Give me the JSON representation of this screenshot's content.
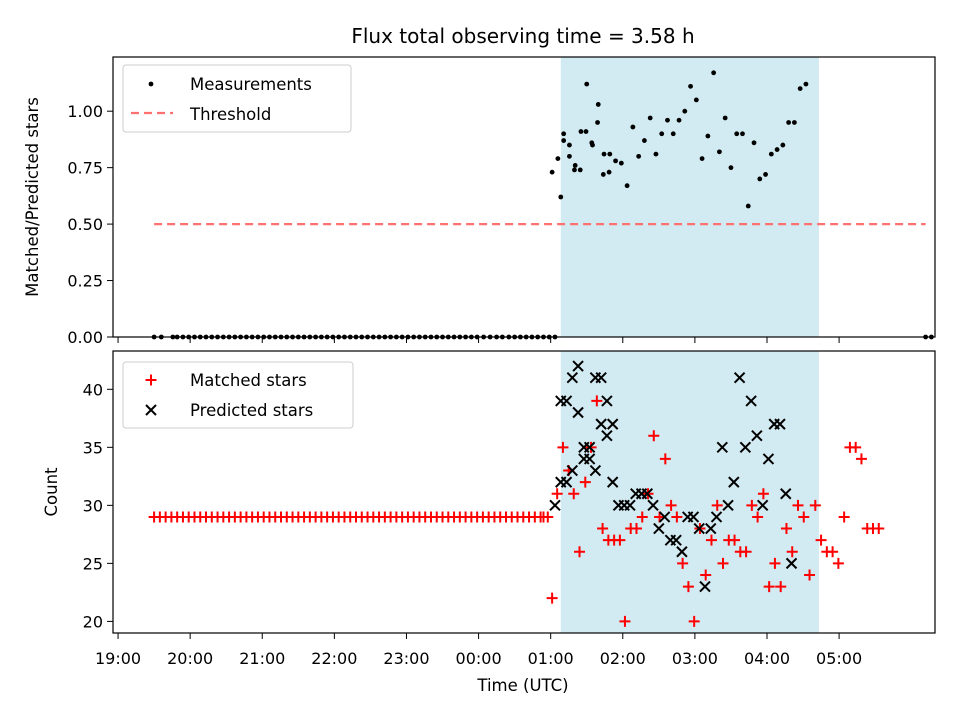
{
  "chart_data": {
    "title": "Flux total observing time = 3.58 h",
    "xlabel": "Time (UTC)",
    "x_ticks": [
      "19:00",
      "20:00",
      "21:00",
      "22:00",
      "23:00",
      "00:00",
      "01:00",
      "02:00",
      "03:00",
      "04:00",
      "05:00"
    ],
    "x_unit": "hours since 18:00 UTC",
    "x_range": [
      0.93,
      12.33
    ],
    "observing_window": [
      7.14,
      10.72
    ],
    "colors": {
      "window": "#add8e6",
      "matched": "#ff0000",
      "predicted": "#000000",
      "threshold": "#ff7070",
      "measurements": "#000000"
    },
    "top": {
      "type": "scatter",
      "ylabel": "Matched/Predicted stars",
      "ylim": [
        0,
        1.24
      ],
      "y_ticks": [
        "0.00",
        "0.25",
        "0.50",
        "0.75",
        "1.00"
      ],
      "legend": {
        "position": "top-left",
        "entries": [
          "Measurements",
          "Threshold"
        ]
      },
      "threshold": {
        "name": "Threshold",
        "value": 0.5,
        "x_range": [
          1.5,
          12.2
        ]
      },
      "measurements": {
        "name": "Measurements",
        "zero_x": [
          1.5,
          1.6,
          1.76,
          1.82,
          1.9,
          1.98,
          2.06,
          2.14,
          2.22,
          2.3,
          2.38,
          2.46,
          2.54,
          2.62,
          2.7,
          2.78,
          2.86,
          2.94,
          3.02,
          3.1,
          3.18,
          3.26,
          3.34,
          3.42,
          3.5,
          3.58,
          3.66,
          3.74,
          3.82,
          3.9,
          3.98,
          4.06,
          4.14,
          4.22,
          4.3,
          4.38,
          4.46,
          4.54,
          4.62,
          4.7,
          4.78,
          4.86,
          4.94,
          5.02,
          5.1,
          5.18,
          5.26,
          5.34,
          5.42,
          5.5,
          5.58,
          5.66,
          5.74,
          5.82,
          5.9,
          5.98,
          6.07,
          6.16,
          6.25,
          6.33,
          6.42,
          6.5,
          6.58,
          6.66,
          6.74,
          6.82,
          6.9,
          6.98,
          7.06,
          12.2,
          12.28
        ],
        "points": [
          [
            7.02,
            0.73
          ],
          [
            7.1,
            0.79
          ],
          [
            7.18,
            0.9
          ],
          [
            7.26,
            0.8
          ],
          [
            7.33,
            0.74
          ],
          [
            7.41,
            0.74
          ],
          [
            7.49,
            0.91
          ],
          [
            7.57,
            0.86
          ],
          [
            7.65,
            0.95
          ],
          [
            7.73,
            0.72
          ],
          [
            7.81,
            0.73
          ],
          [
            7.14,
            0.62
          ],
          [
            7.18,
            0.87
          ],
          [
            7.26,
            0.85
          ],
          [
            7.34,
            0.76
          ],
          [
            7.42,
            0.91
          ],
          [
            7.5,
            1.12
          ],
          [
            7.58,
            0.85
          ],
          [
            7.66,
            1.03
          ],
          [
            7.74,
            0.81
          ],
          [
            7.82,
            0.81
          ],
          [
            7.9,
            0.78
          ],
          [
            7.98,
            0.77
          ],
          [
            8.06,
            0.67
          ],
          [
            8.14,
            0.93
          ],
          [
            8.22,
            0.8
          ],
          [
            8.3,
            0.87
          ],
          [
            8.38,
            0.97
          ],
          [
            8.46,
            0.81
          ],
          [
            8.54,
            0.9
          ],
          [
            8.62,
            0.96
          ],
          [
            8.7,
            0.9
          ],
          [
            8.78,
            0.96
          ],
          [
            8.86,
            1.0
          ],
          [
            8.94,
            1.11
          ],
          [
            9.02,
            1.05
          ],
          [
            9.1,
            0.79
          ],
          [
            9.18,
            0.89
          ],
          [
            9.26,
            1.17
          ],
          [
            9.34,
            0.82
          ],
          [
            9.42,
            0.97
          ],
          [
            9.5,
            0.75
          ],
          [
            9.58,
            0.9
          ],
          [
            9.66,
            0.9
          ],
          [
            9.74,
            0.58
          ],
          [
            9.82,
            0.86
          ],
          [
            9.9,
            0.7
          ],
          [
            9.98,
            0.72
          ],
          [
            10.06,
            0.81
          ],
          [
            10.14,
            0.83
          ],
          [
            10.22,
            0.85
          ],
          [
            10.3,
            0.95
          ],
          [
            10.38,
            0.95
          ],
          [
            10.46,
            1.1
          ],
          [
            10.54,
            1.12
          ]
        ]
      }
    },
    "bottom": {
      "type": "scatter",
      "ylabel": "Count",
      "ylim": [
        19,
        43.3
      ],
      "y_ticks": [
        "20",
        "25",
        "30",
        "35",
        "40"
      ],
      "legend": {
        "position": "top-left",
        "entries": [
          "Matched stars",
          "Predicted stars"
        ]
      },
      "matched_baseline": {
        "value": 29,
        "x_range": [
          1.5,
          6.9
        ],
        "step": 0.08
      },
      "matched": {
        "name": "Matched stars",
        "points": [
          [
            6.9,
            29
          ],
          [
            6.96,
            29
          ],
          [
            7.02,
            22
          ],
          [
            7.09,
            31
          ],
          [
            7.17,
            35
          ],
          [
            7.25,
            33
          ],
          [
            7.32,
            31
          ],
          [
            7.4,
            26
          ],
          [
            7.48,
            32
          ],
          [
            7.56,
            35
          ],
          [
            7.64,
            39
          ],
          [
            7.72,
            28
          ],
          [
            7.8,
            27
          ],
          [
            7.88,
            27
          ],
          [
            7.96,
            27
          ],
          [
            8.03,
            20
          ],
          [
            8.11,
            28
          ],
          [
            8.19,
            28
          ],
          [
            8.27,
            29
          ],
          [
            8.35,
            31
          ],
          [
            8.43,
            36
          ],
          [
            8.51,
            29
          ],
          [
            8.59,
            34
          ],
          [
            8.67,
            30
          ],
          [
            8.75,
            29
          ],
          [
            8.83,
            25
          ],
          [
            8.91,
            23
          ],
          [
            8.99,
            20
          ],
          [
            9.07,
            28
          ],
          [
            9.15,
            24
          ],
          [
            9.23,
            27
          ],
          [
            9.31,
            30
          ],
          [
            9.39,
            25
          ],
          [
            9.47,
            27
          ],
          [
            9.55,
            27
          ],
          [
            9.63,
            26
          ],
          [
            9.71,
            26
          ],
          [
            9.79,
            30
          ],
          [
            9.87,
            29
          ],
          [
            9.95,
            31
          ],
          [
            10.03,
            23
          ],
          [
            10.11,
            25
          ],
          [
            10.19,
            23
          ],
          [
            10.27,
            28
          ],
          [
            10.35,
            26
          ],
          [
            10.43,
            30
          ],
          [
            10.51,
            29
          ],
          [
            10.59,
            24
          ],
          [
            10.67,
            30
          ],
          [
            10.75,
            27
          ],
          [
            10.83,
            26
          ],
          [
            10.91,
            26
          ],
          [
            10.99,
            25
          ],
          [
            11.07,
            29
          ],
          [
            11.15,
            35
          ],
          [
            11.23,
            35
          ],
          [
            11.31,
            34
          ],
          [
            11.39,
            28
          ],
          [
            11.47,
            28
          ],
          [
            11.55,
            28
          ]
        ]
      },
      "predicted": {
        "name": "Predicted stars",
        "points": [
          [
            7.06,
            30
          ],
          [
            7.14,
            39
          ],
          [
            7.22,
            39
          ],
          [
            7.3,
            41
          ],
          [
            7.38,
            42
          ],
          [
            7.46,
            35
          ],
          [
            7.54,
            35
          ],
          [
            7.62,
            41
          ],
          [
            7.7,
            41
          ],
          [
            7.78,
            39
          ],
          [
            7.86,
            37
          ],
          [
            7.14,
            32
          ],
          [
            7.22,
            32
          ],
          [
            7.3,
            33
          ],
          [
            7.38,
            38
          ],
          [
            7.46,
            34
          ],
          [
            7.54,
            34
          ],
          [
            7.62,
            33
          ],
          [
            7.7,
            37
          ],
          [
            7.78,
            36
          ],
          [
            7.86,
            32
          ],
          [
            7.94,
            30
          ],
          [
            8.02,
            30
          ],
          [
            8.1,
            30
          ],
          [
            8.18,
            31
          ],
          [
            8.26,
            31
          ],
          [
            8.34,
            31
          ],
          [
            8.42,
            30
          ],
          [
            8.5,
            28
          ],
          [
            8.58,
            29
          ],
          [
            8.66,
            27
          ],
          [
            8.74,
            27
          ],
          [
            8.82,
            26
          ],
          [
            8.9,
            29
          ],
          [
            8.98,
            29
          ],
          [
            9.06,
            28
          ],
          [
            9.14,
            23
          ],
          [
            9.22,
            28
          ],
          [
            9.3,
            29
          ],
          [
            9.38,
            35
          ],
          [
            9.46,
            30
          ],
          [
            9.54,
            32
          ],
          [
            9.62,
            41
          ],
          [
            9.7,
            35
          ],
          [
            9.78,
            39
          ],
          [
            9.86,
            36
          ],
          [
            9.94,
            30
          ],
          [
            10.02,
            34
          ],
          [
            10.1,
            37
          ],
          [
            10.18,
            37
          ],
          [
            10.26,
            31
          ],
          [
            10.34,
            25
          ]
        ]
      }
    }
  }
}
